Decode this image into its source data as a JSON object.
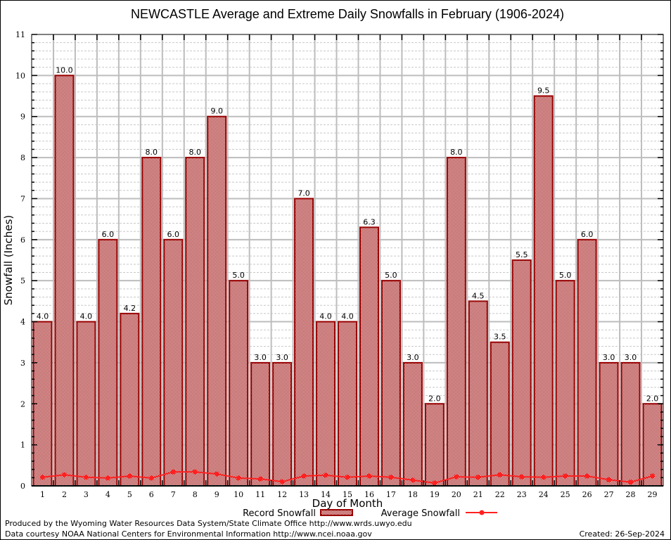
{
  "chart_data": {
    "type": "bar",
    "title": "NEWCASTLE Average and Extreme Daily Snowfalls in February (1906-2024)",
    "xlabel": "Day of Month",
    "ylabel": "Snowfall (Inches)",
    "ylim": [
      0,
      11
    ],
    "yticks": [
      "0",
      "1",
      "2",
      "3",
      "4",
      "5",
      "6",
      "7",
      "8",
      "9",
      "10",
      "11"
    ],
    "grid": true,
    "categories": [
      "1",
      "2",
      "3",
      "4",
      "5",
      "6",
      "7",
      "8",
      "9",
      "10",
      "11",
      "12",
      "13",
      "14",
      "15",
      "16",
      "17",
      "18",
      "19",
      "20",
      "21",
      "22",
      "23",
      "24",
      "25",
      "26",
      "27",
      "28",
      "29"
    ],
    "series": [
      {
        "name": "Record Snowfall",
        "type": "bar",
        "color": "#990000",
        "values": [
          4.0,
          10.0,
          4.0,
          6.0,
          4.2,
          8.0,
          6.0,
          8.0,
          9.0,
          5.0,
          3.0,
          3.0,
          7.0,
          4.0,
          4.0,
          6.3,
          5.0,
          3.0,
          2.0,
          8.0,
          4.5,
          3.5,
          5.5,
          9.5,
          5.0,
          6.0,
          3.0,
          3.0,
          2.0
        ],
        "labels": [
          "4.0",
          "10.0",
          "4.0",
          "6.0",
          "4.2",
          "8.0",
          "6.0",
          "8.0",
          "9.0",
          "5.0",
          "3.0",
          "3.0",
          "7.0",
          "4.0",
          "4.0",
          "6.3",
          "5.0",
          "3.0",
          "2.0",
          "8.0",
          "4.5",
          "3.5",
          "5.5",
          "9.5",
          "5.0",
          "6.0",
          "3.0",
          "3.0",
          "2.0"
        ]
      },
      {
        "name": "Average Snowfall",
        "type": "line",
        "color": "#ff2020",
        "values": [
          0.21,
          0.27,
          0.21,
          0.19,
          0.24,
          0.19,
          0.34,
          0.34,
          0.29,
          0.19,
          0.17,
          0.1,
          0.24,
          0.26,
          0.21,
          0.24,
          0.21,
          0.14,
          0.07,
          0.22,
          0.21,
          0.27,
          0.22,
          0.21,
          0.24,
          0.24,
          0.15,
          0.09,
          0.24
        ]
      }
    ],
    "legend": [
      "Record Snowfall",
      "Average Snowfall"
    ],
    "legend_position": "bottom-center"
  },
  "footer": {
    "produced_by": "Produced by the Wyoming Water Resources Data System/State Climate Office http://www.wrds.uwyo.edu",
    "data_courtesy": "Data courtesy NOAA National Centers for Environmental Information http://www.ncei.noaa.gov",
    "created": "Created: 26-Sep-2024"
  }
}
